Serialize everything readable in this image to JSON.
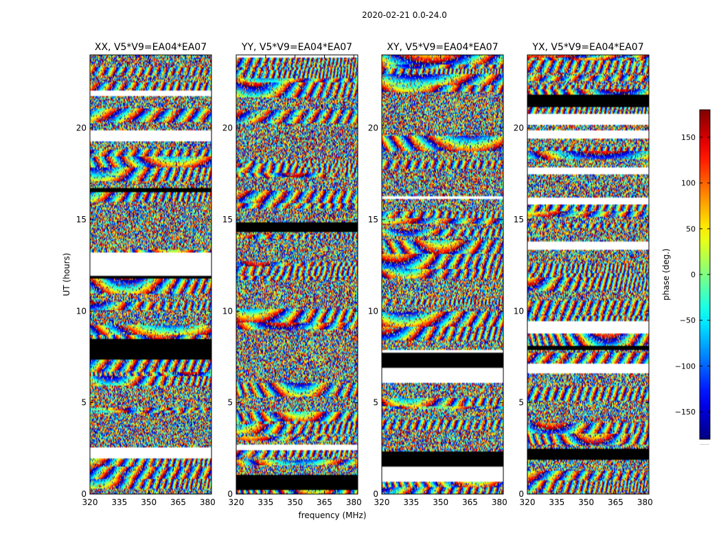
{
  "figure": {
    "suptitle": "2020-02-21 0.0-24.0",
    "xlabel": "frequency (MHz)",
    "ylabel": "UT (hours)",
    "colorbar_label": "phase (deg.)",
    "colorbar_dots": "......",
    "colormap": "jet"
  },
  "chart_data": [
    {
      "type": "heatmap",
      "title": "XX, V5*V9=EA04*EA07",
      "x_range": [
        320,
        382
      ],
      "xticks": [
        320,
        335,
        350,
        365,
        380
      ],
      "y_range": [
        0,
        24
      ],
      "yticks": [
        0,
        5,
        10,
        15,
        20
      ],
      "value_range": [
        -180,
        180
      ],
      "seed": 11
    },
    {
      "type": "heatmap",
      "title": "YY, V5*V9=EA04*EA07",
      "x_range": [
        320,
        382
      ],
      "xticks": [
        320,
        335,
        350,
        365,
        380
      ],
      "y_range": [
        0,
        24
      ],
      "yticks": [
        0,
        5,
        10,
        15,
        20
      ],
      "value_range": [
        -180,
        180
      ],
      "seed": 23
    },
    {
      "type": "heatmap",
      "title": "XY, V5*V9=EA04*EA07",
      "x_range": [
        320,
        382
      ],
      "xticks": [
        320,
        335,
        350,
        365,
        380
      ],
      "y_range": [
        0,
        24
      ],
      "yticks": [
        0,
        5,
        10,
        15,
        20
      ],
      "value_range": [
        -180,
        180
      ],
      "seed": 37
    },
    {
      "type": "heatmap",
      "title": "YX, V5*V9=EA04*EA07",
      "x_range": [
        320,
        382
      ],
      "xticks": [
        320,
        335,
        350,
        365,
        380
      ],
      "y_range": [
        0,
        24
      ],
      "yticks": [
        0,
        5,
        10,
        15,
        20
      ],
      "value_range": [
        -180,
        180
      ],
      "seed": 53
    }
  ],
  "colorbar": {
    "range": [
      -180,
      180
    ],
    "ticks": [
      150,
      100,
      50,
      0,
      -50,
      -100,
      -150
    ],
    "tick_labels": [
      "150",
      "100",
      "50",
      "0",
      "−50",
      "−100",
      "−150"
    ]
  }
}
